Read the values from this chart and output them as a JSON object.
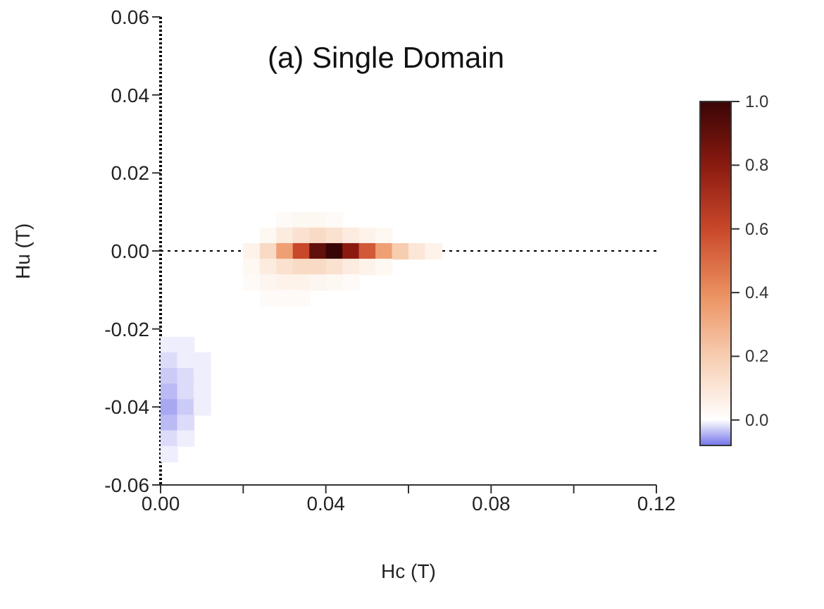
{
  "chart_data": {
    "type": "scatter",
    "title": "(a) Single Domain",
    "xlabel": "Hc (T)",
    "ylabel": "Hu (T)",
    "clabel": null,
    "x": [
      0.03,
      0.034,
      0.038,
      0.042,
      0.026,
      0.03,
      0.034,
      0.038,
      0.042,
      0.046,
      0.05,
      0.054,
      0.022,
      0.026,
      0.03,
      0.034,
      0.038,
      0.042,
      0.046,
      0.05,
      0.054,
      0.058,
      0.062,
      0.066,
      0.022,
      0.026,
      0.03,
      0.034,
      0.038,
      0.042,
      0.046,
      0.05,
      0.054,
      0.022,
      0.026,
      0.03,
      0.034,
      0.038,
      0.042,
      0.046,
      0.026,
      0.03,
      0.034,
      0.002,
      0.006,
      0.002,
      0.006,
      0.01,
      0.002,
      0.006,
      0.01,
      0.002,
      0.006,
      0.01,
      0.002,
      0.006,
      0.01,
      0.002,
      0.006,
      0.002,
      0.006,
      0.002
    ],
    "values": [
      0.008,
      0.008,
      0.008,
      0.008,
      0.004,
      0.004,
      0.004,
      0.004,
      0.004,
      0.004,
      0.004,
      0.004,
      0,
      0,
      0,
      0,
      0,
      0,
      0,
      0,
      0,
      0,
      0,
      0,
      -0.004,
      -0.004,
      -0.004,
      -0.004,
      -0.004,
      -0.004,
      -0.004,
      -0.004,
      -0.004,
      -0.008,
      -0.008,
      -0.008,
      -0.008,
      -0.008,
      -0.008,
      -0.008,
      -0.012,
      -0.012,
      -0.012,
      -0.024,
      -0.024,
      -0.028,
      -0.028,
      -0.028,
      -0.032,
      -0.032,
      -0.032,
      -0.036,
      -0.036,
      -0.036,
      -0.04,
      -0.04,
      -0.04,
      -0.044,
      -0.044,
      -0.048,
      -0.048,
      -0.052
    ],
    "cvalues": [
      0.02,
      0.03,
      0.03,
      0.02,
      0.03,
      0.08,
      0.12,
      0.15,
      0.12,
      0.08,
      0.05,
      0.03,
      0.05,
      0.15,
      0.35,
      0.6,
      0.9,
      1.0,
      0.8,
      0.55,
      0.35,
      0.2,
      0.1,
      0.05,
      0.03,
      0.08,
      0.12,
      0.15,
      0.15,
      0.12,
      0.08,
      0.05,
      0.03,
      0.02,
      0.04,
      0.05,
      0.05,
      0.04,
      0.03,
      0.02,
      0.02,
      0.02,
      0.02,
      -0.01,
      -0.01,
      -0.02,
      -0.01,
      -0.01,
      -0.03,
      -0.02,
      -0.01,
      -0.04,
      -0.02,
      -0.01,
      -0.05,
      -0.03,
      -0.01,
      -0.04,
      -0.02,
      -0.02,
      -0.01,
      -0.01
    ],
    "marker": "square",
    "clim": [
      -0.08,
      1
    ],
    "cticks": [
      {
        "value": 0,
        "label": "0.0"
      },
      {
        "value": 0.2,
        "label": "0.2"
      },
      {
        "value": 0.4,
        "label": "0.4"
      },
      {
        "value": 0.6,
        "label": "0.6"
      },
      {
        "value": 0.8,
        "label": "0.8"
      },
      {
        "value": 1,
        "label": "1.0"
      }
    ],
    "xlim": [
      0,
      0.12
    ],
    "xticks": [
      {
        "value": 0,
        "label": "0.00"
      },
      {
        "value": 0.02,
        "label": null
      },
      {
        "value": 0.04,
        "label": "0.04"
      },
      {
        "value": 0.06,
        "label": null
      },
      {
        "value": 0.08,
        "label": "0.08"
      },
      {
        "value": 0.1,
        "label": null
      },
      {
        "value": 0.12,
        "label": "0.12"
      }
    ],
    "ylim": [
      -0.06,
      0.06
    ],
    "yticks": [
      {
        "value": -0.06,
        "label": "-0.06"
      },
      {
        "value": -0.04,
        "label": "-0.04"
      },
      {
        "value": -0.02,
        "label": "-0.02"
      },
      {
        "value": 0,
        "label": "0.00"
      },
      {
        "value": 0.02,
        "label": "0.02"
      },
      {
        "value": 0.04,
        "label": "0.04"
      },
      {
        "value": 0.06,
        "label": "0.06"
      }
    ],
    "ref_lines": [
      {
        "axis": "y",
        "value": 0,
        "line_style": "dotted",
        "color": "#000000"
      }
    ]
  }
}
